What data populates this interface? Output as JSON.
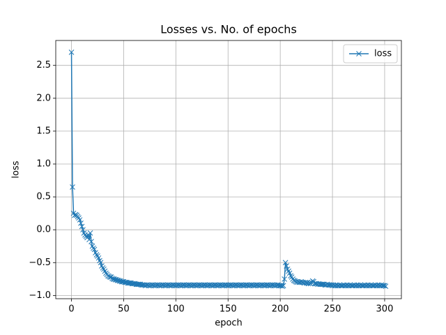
{
  "chart_data": {
    "type": "line",
    "title": "Losses vs. No. of epochs",
    "x_label": "epoch",
    "y_label": "loss",
    "x": [
      0,
      1,
      2,
      3,
      4,
      5,
      6,
      7,
      8,
      9,
      10,
      11,
      12,
      13,
      14,
      15,
      16,
      17,
      18,
      19,
      20,
      21,
      22,
      23,
      24,
      25,
      26,
      27,
      28,
      29,
      30,
      31,
      32,
      33,
      34,
      35,
      36,
      37,
      38,
      39,
      40,
      41,
      42,
      43,
      44,
      45,
      46,
      47,
      48,
      49,
      50,
      51,
      52,
      53,
      54,
      55,
      56,
      57,
      58,
      59,
      60,
      61,
      62,
      63,
      64,
      65,
      66,
      67,
      68,
      69,
      70,
      71,
      72,
      73,
      74,
      75,
      76,
      77,
      78,
      79,
      80,
      81,
      82,
      83,
      84,
      85,
      86,
      87,
      88,
      89,
      90,
      91,
      92,
      93,
      94,
      95,
      96,
      97,
      98,
      99,
      100,
      101,
      102,
      103,
      104,
      105,
      106,
      107,
      108,
      109,
      110,
      111,
      112,
      113,
      114,
      115,
      116,
      117,
      118,
      119,
      120,
      121,
      122,
      123,
      124,
      125,
      126,
      127,
      128,
      129,
      130,
      131,
      132,
      133,
      134,
      135,
      136,
      137,
      138,
      139,
      140,
      141,
      142,
      143,
      144,
      145,
      146,
      147,
      148,
      149,
      150,
      151,
      152,
      153,
      154,
      155,
      156,
      157,
      158,
      159,
      160,
      161,
      162,
      163,
      164,
      165,
      166,
      167,
      168,
      169,
      170,
      171,
      172,
      173,
      174,
      175,
      176,
      177,
      178,
      179,
      180,
      181,
      182,
      183,
      184,
      185,
      186,
      187,
      188,
      189,
      190,
      191,
      192,
      193,
      194,
      195,
      196,
      197,
      198,
      199,
      200,
      201,
      202,
      203,
      204,
      205,
      206,
      207,
      208,
      209,
      210,
      211,
      212,
      213,
      214,
      215,
      216,
      217,
      218,
      219,
      220,
      221,
      222,
      223,
      224,
      225,
      226,
      227,
      228,
      229,
      230,
      231,
      232,
      233,
      234,
      235,
      236,
      237,
      238,
      239,
      240,
      241,
      242,
      243,
      244,
      245,
      246,
      247,
      248,
      249,
      250,
      251,
      252,
      253,
      254,
      255,
      256,
      257,
      258,
      259,
      260,
      261,
      262,
      263,
      264,
      265,
      266,
      267,
      268,
      269,
      270,
      271,
      272,
      273,
      274,
      275,
      276,
      277,
      278,
      279,
      280,
      281,
      282,
      283,
      284,
      285,
      286,
      287,
      288,
      289,
      290,
      291,
      292,
      293,
      294,
      295,
      296,
      297,
      298,
      299,
      300,
      301
    ],
    "series": [
      {
        "name": "loss",
        "color": "#1f77b4",
        "marker": "x",
        "values": [
          2.7,
          0.65,
          0.25,
          0.22,
          0.23,
          0.22,
          0.2,
          0.18,
          0.15,
          0.1,
          0.05,
          0.0,
          -0.05,
          -0.08,
          -0.1,
          -0.12,
          -0.08,
          -0.15,
          -0.05,
          -0.18,
          -0.25,
          -0.28,
          -0.3,
          -0.35,
          -0.38,
          -0.4,
          -0.43,
          -0.47,
          -0.5,
          -0.55,
          -0.58,
          -0.6,
          -0.63,
          -0.66,
          -0.68,
          -0.7,
          -0.71,
          -0.72,
          -0.72,
          -0.74,
          -0.75,
          -0.75,
          -0.76,
          -0.76,
          -0.77,
          -0.77,
          -0.78,
          -0.78,
          -0.79,
          -0.79,
          -0.79,
          -0.8,
          -0.8,
          -0.8,
          -0.81,
          -0.81,
          -0.81,
          -0.81,
          -0.82,
          -0.82,
          -0.82,
          -0.82,
          -0.83,
          -0.83,
          -0.83,
          -0.83,
          -0.83,
          -0.84,
          -0.84,
          -0.84,
          -0.84,
          -0.85,
          -0.84,
          -0.84,
          -0.85,
          -0.84,
          -0.85,
          -0.84,
          -0.84,
          -0.85,
          -0.84,
          -0.85,
          -0.84,
          -0.84,
          -0.85,
          -0.84,
          -0.85,
          -0.84,
          -0.84,
          -0.85,
          -0.84,
          -0.85,
          -0.84,
          -0.84,
          -0.85,
          -0.84,
          -0.85,
          -0.84,
          -0.84,
          -0.85,
          -0.84,
          -0.85,
          -0.84,
          -0.84,
          -0.85,
          -0.84,
          -0.85,
          -0.84,
          -0.84,
          -0.85,
          -0.84,
          -0.85,
          -0.84,
          -0.84,
          -0.85,
          -0.84,
          -0.85,
          -0.84,
          -0.84,
          -0.85,
          -0.84,
          -0.85,
          -0.84,
          -0.84,
          -0.85,
          -0.84,
          -0.85,
          -0.84,
          -0.84,
          -0.85,
          -0.84,
          -0.85,
          -0.84,
          -0.84,
          -0.85,
          -0.84,
          -0.85,
          -0.84,
          -0.84,
          -0.85,
          -0.84,
          -0.85,
          -0.84,
          -0.84,
          -0.85,
          -0.84,
          -0.85,
          -0.84,
          -0.84,
          -0.85,
          -0.84,
          -0.85,
          -0.84,
          -0.84,
          -0.85,
          -0.84,
          -0.85,
          -0.84,
          -0.84,
          -0.85,
          -0.84,
          -0.85,
          -0.84,
          -0.84,
          -0.85,
          -0.84,
          -0.85,
          -0.84,
          -0.84,
          -0.85,
          -0.84,
          -0.85,
          -0.84,
          -0.84,
          -0.85,
          -0.84,
          -0.85,
          -0.84,
          -0.84,
          -0.85,
          -0.84,
          -0.85,
          -0.84,
          -0.84,
          -0.85,
          -0.84,
          -0.85,
          -0.84,
          -0.84,
          -0.85,
          -0.84,
          -0.85,
          -0.84,
          -0.84,
          -0.85,
          -0.84,
          -0.85,
          -0.84,
          -0.84,
          -0.85,
          -0.85,
          -0.85,
          -0.86,
          -0.85,
          -0.75,
          -0.5,
          -0.55,
          -0.6,
          -0.63,
          -0.66,
          -0.7,
          -0.72,
          -0.75,
          -0.77,
          -0.78,
          -0.79,
          -0.8,
          -0.79,
          -0.8,
          -0.8,
          -0.79,
          -0.8,
          -0.8,
          -0.81,
          -0.8,
          -0.81,
          -0.81,
          -0.82,
          -0.81,
          -0.82,
          -0.8,
          -0.78,
          -0.79,
          -0.82,
          -0.82,
          -0.82,
          -0.83,
          -0.82,
          -0.83,
          -0.83,
          -0.83,
          -0.83,
          -0.83,
          -0.84,
          -0.84,
          -0.83,
          -0.84,
          -0.84,
          -0.84,
          -0.84,
          -0.85,
          -0.84,
          -0.85,
          -0.85,
          -0.84,
          -0.85,
          -0.85,
          -0.84,
          -0.85,
          -0.85,
          -0.85,
          -0.84,
          -0.85,
          -0.85,
          -0.84,
          -0.85,
          -0.85,
          -0.84,
          -0.85,
          -0.85,
          -0.85,
          -0.84,
          -0.85,
          -0.85,
          -0.84,
          -0.85,
          -0.85,
          -0.84,
          -0.85,
          -0.85,
          -0.85,
          -0.84,
          -0.85,
          -0.85,
          -0.84,
          -0.85,
          -0.85,
          -0.84,
          -0.85,
          -0.85,
          -0.85,
          -0.84,
          -0.85,
          -0.85,
          -0.84,
          -0.85,
          -0.85,
          -0.84,
          -0.85,
          -0.85,
          -0.85,
          -0.86
        ]
      }
    ],
    "xlim": [
      -15.05,
      316.05
    ],
    "xticks": [
      0,
      50,
      100,
      150,
      200,
      250,
      300
    ],
    "ylim": [
      -1.049,
      2.879
    ],
    "yticks": [
      {
        "value": -1,
        "label": "−1.0"
      },
      {
        "value": -0.5,
        "label": "−0.5"
      },
      {
        "value": 0,
        "label": "0.0"
      },
      0.5,
      {
        "value": 1,
        "label": "1.0"
      },
      1.5,
      {
        "value": 2,
        "label": "2.0"
      },
      2.5
    ],
    "grid": true,
    "legend": "upper right"
  }
}
